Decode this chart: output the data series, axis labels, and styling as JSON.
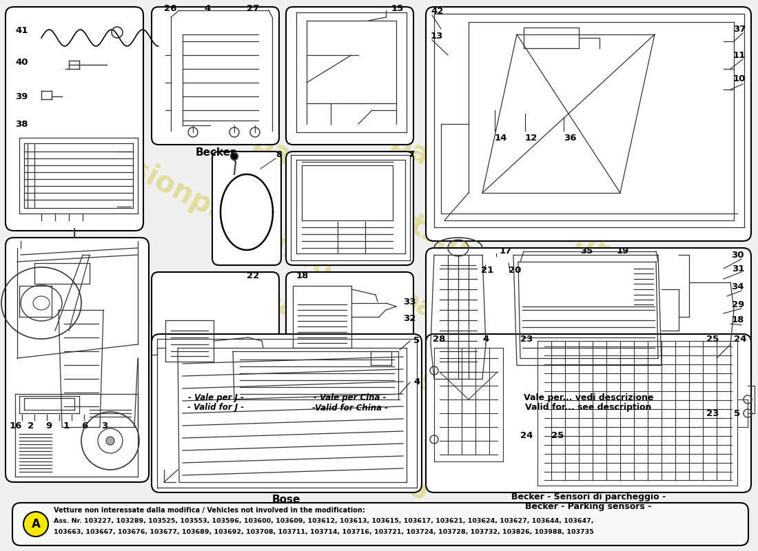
{
  "background_color": "#f0f0f0",
  "panel_bg": "#ffffff",
  "watermark_text": "passionparts.info",
  "watermark_color": "#c8b800",
  "watermark_alpha": 0.35,
  "bottom_box": {
    "label_circle": "A",
    "label_circle_bg": "#f5e800",
    "line1_bold": "Vetture non interessate dalla modifica / Vehicles not involved in the modification:",
    "line2": "Ass. Nr. 103227, 103289, 103525, 103553, 103596, 103600, 103609, 103612, 103613, 103615, 103617, 103621, 103624, 103627, 103644, 103647,",
    "line3": "103663, 103667, 103676, 103677, 103689, 103692, 103708, 103711, 103714, 103716, 103721, 103724, 103728, 103732, 103826, 103988, 103735"
  },
  "becker_label": "Becker",
  "bose_label": "Bose",
  "valid_j_1": "- Vale per J -",
  "valid_j_2": "- Valid for J -",
  "valid_china_1": "- Vale per Cina -",
  "valid_china_2": "-Valid for China -",
  "valid_desc_1": "Vale per... vedi descrizione",
  "valid_desc_2": "Valid for... see description",
  "becker_parking_1": "Becker - Sensori di parcheggio -",
  "becker_parking_2": "Becker - Parking sensors -"
}
